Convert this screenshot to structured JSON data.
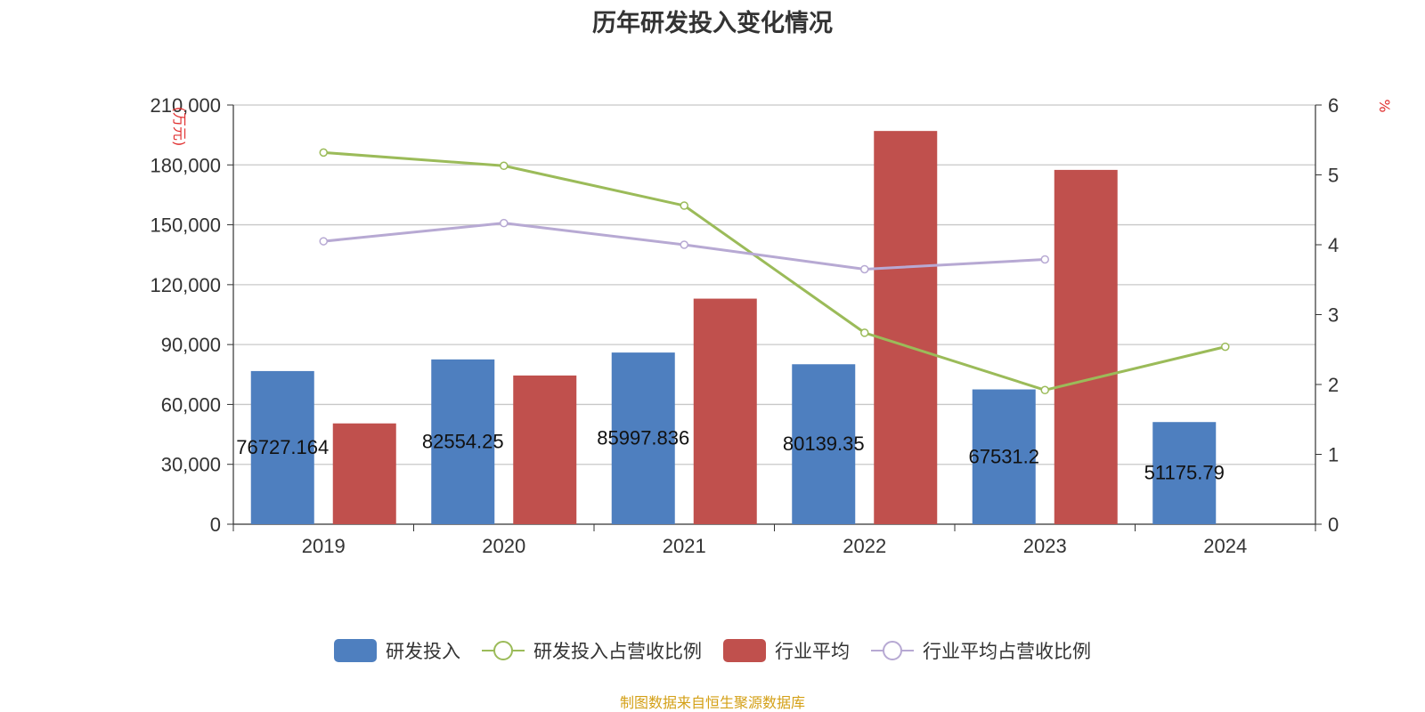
{
  "chart_data": {
    "type": "bar",
    "title": "历年研发投入变化情况",
    "categories": [
      "2019",
      "2020",
      "2021",
      "2022",
      "2023",
      "2024"
    ],
    "left_axis": {
      "unit_label": "(万元)",
      "ylim": [
        0,
        210000
      ],
      "ticks": [
        "0",
        "30,000",
        "60,000",
        "90,000",
        "120,000",
        "150,000",
        "180,000",
        "210,000"
      ],
      "tick_values": [
        0,
        30000,
        60000,
        90000,
        120000,
        150000,
        180000,
        210000
      ]
    },
    "right_axis": {
      "unit_label": "%",
      "ylim": [
        0,
        6
      ],
      "ticks": [
        "0",
        "1",
        "2",
        "3",
        "4",
        "5",
        "6"
      ],
      "tick_values": [
        0,
        1,
        2,
        3,
        4,
        5,
        6
      ]
    },
    "series": [
      {
        "name": "研发投入",
        "type": "bar",
        "axis": "left",
        "color": "#4e7fbf",
        "values": [
          76727.164,
          82554.25,
          85997.836,
          80139.35,
          67531.2,
          51175.79
        ],
        "labels": [
          "76727.164",
          "82554.25",
          "85997.836",
          "80139.35",
          "67531.2",
          "51175.79"
        ]
      },
      {
        "name": "研发投入占营收比例",
        "type": "line",
        "axis": "right",
        "color": "#9bbb59",
        "values": [
          5.32,
          5.13,
          4.56,
          2.74,
          1.92,
          2.54
        ]
      },
      {
        "name": "行业平均",
        "type": "bar",
        "axis": "left",
        "color": "#c0504d",
        "values": [
          50500,
          74500,
          113000,
          197000,
          177500,
          null
        ]
      },
      {
        "name": "行业平均占营收比例",
        "type": "line",
        "axis": "right",
        "color": "#b7a9d3",
        "values": [
          4.05,
          4.31,
          4.0,
          3.65,
          3.79,
          null
        ]
      }
    ],
    "grid": true,
    "legend_position": "bottom"
  },
  "footer": {
    "source": "制图数据来自恒生聚源数据库"
  }
}
